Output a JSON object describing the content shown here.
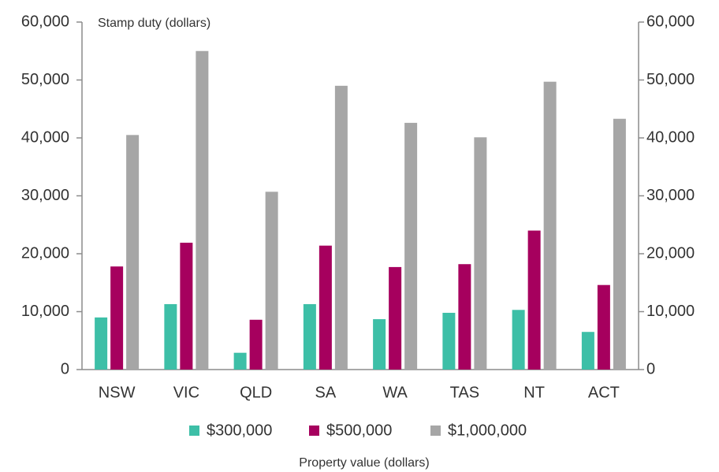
{
  "chart_data": {
    "type": "bar",
    "y_label": "Stamp duty (dollars)",
    "x_label": "Property value (dollars)",
    "categories": [
      "NSW",
      "VIC",
      "QLD",
      "SA",
      "WA",
      "TAS",
      "NT",
      "ACT"
    ],
    "series": [
      {
        "name": "$300,000",
        "color": "#3dbfa7",
        "values": [
          9000,
          11300,
          2900,
          11300,
          8700,
          9800,
          10300,
          6500
        ]
      },
      {
        "name": "$500,000",
        "color": "#a6005e",
        "values": [
          17800,
          21900,
          8600,
          21400,
          17700,
          18200,
          24000,
          14600
        ]
      },
      {
        "name": "$1,000,000",
        "color": "#a6a6a6",
        "values": [
          40500,
          55000,
          30700,
          49000,
          42600,
          40100,
          49700,
          43300
        ]
      }
    ],
    "ylim": [
      0,
      60000
    ],
    "yticks": [
      0,
      {
        "value": 10000,
        "label": "10,000"
      },
      {
        "value": 20000,
        "label": "20,000"
      },
      {
        "value": 30000,
        "label": "30,000"
      },
      {
        "value": 40000,
        "label": "40,000"
      },
      {
        "value": 50000,
        "label": "50,000"
      },
      {
        "value": 60000,
        "label": "60,000"
      }
    ],
    "y2lim": [
      0,
      60000
    ],
    "y2ticks": [
      0,
      {
        "value": 10000,
        "label": "10,000"
      },
      {
        "value": 20000,
        "label": "20,000"
      },
      {
        "value": 30000,
        "label": "30,000"
      },
      {
        "value": 40000,
        "label": "40,000"
      },
      {
        "value": 50000,
        "label": "50,000"
      },
      {
        "value": 60000,
        "label": "60,000"
      }
    ],
    "legend": "bottom"
  }
}
